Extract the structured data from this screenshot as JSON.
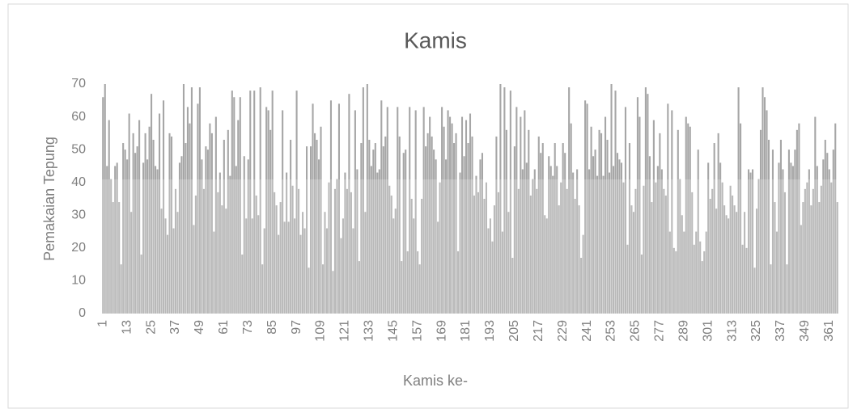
{
  "chart_data": {
    "type": "bar",
    "title": "Kamis",
    "x_label": "Kamis ke-",
    "y_label": "Pemakaian Tepung",
    "color": "#a6a6a6",
    "grid": false,
    "ylim": [
      0,
      70
    ],
    "yticks": [
      0,
      10,
      20,
      30,
      40,
      50,
      60,
      70
    ],
    "categories": [
      "1",
      null,
      null,
      null,
      null,
      null,
      null,
      null,
      null,
      null,
      null,
      null,
      "13",
      null,
      null,
      null,
      null,
      null,
      null,
      null,
      null,
      null,
      null,
      null,
      "25",
      null,
      null,
      null,
      null,
      null,
      null,
      null,
      null,
      null,
      null,
      null,
      "37",
      null,
      null,
      null,
      null,
      null,
      null,
      null,
      null,
      null,
      null,
      null,
      "49",
      null,
      null,
      null,
      null,
      null,
      null,
      null,
      null,
      null,
      null,
      null,
      "61",
      null,
      null,
      null,
      null,
      null,
      null,
      null,
      null,
      null,
      null,
      null,
      "73",
      null,
      null,
      null,
      null,
      null,
      null,
      null,
      null,
      null,
      null,
      null,
      "85",
      null,
      null,
      null,
      null,
      null,
      null,
      null,
      null,
      null,
      null,
      null,
      "97",
      null,
      null,
      null,
      null,
      null,
      null,
      null,
      null,
      null,
      null,
      null,
      "109",
      null,
      null,
      null,
      null,
      null,
      null,
      null,
      null,
      null,
      null,
      null,
      "121",
      null,
      null,
      null,
      null,
      null,
      null,
      null,
      null,
      null,
      null,
      null,
      "133",
      null,
      null,
      null,
      null,
      null,
      null,
      null,
      null,
      null,
      null,
      null,
      "145",
      null,
      null,
      null,
      null,
      null,
      null,
      null,
      null,
      null,
      null,
      null,
      "157",
      null,
      null,
      null,
      null,
      null,
      null,
      null,
      null,
      null,
      null,
      null,
      "169",
      null,
      null,
      null,
      null,
      null,
      null,
      null,
      null,
      null,
      null,
      null,
      "181",
      null,
      null,
      null,
      null,
      null,
      null,
      null,
      null,
      null,
      null,
      null,
      "193",
      null,
      null,
      null,
      null,
      null,
      null,
      null,
      null,
      null,
      null,
      null,
      "205",
      null,
      null,
      null,
      null,
      null,
      null,
      null,
      null,
      null,
      null,
      null,
      "217",
      null,
      null,
      null,
      null,
      null,
      null,
      null,
      null,
      null,
      null,
      null,
      "229",
      null,
      null,
      null,
      null,
      null,
      null,
      null,
      null,
      null,
      null,
      null,
      "241",
      null,
      null,
      null,
      null,
      null,
      null,
      null,
      null,
      null,
      null,
      null,
      "253",
      null,
      null,
      null,
      null,
      null,
      null,
      null,
      null,
      null,
      null,
      null,
      "265",
      null,
      null,
      null,
      null,
      null,
      null,
      null,
      null,
      null,
      null,
      null,
      "277",
      null,
      null,
      null,
      null,
      null,
      null,
      null,
      null,
      null,
      null,
      null,
      "289",
      null,
      null,
      null,
      null,
      null,
      null,
      null,
      null,
      null,
      null,
      null,
      "301",
      null,
      null,
      null,
      null,
      null,
      null,
      null,
      null,
      null,
      null,
      null,
      "313",
      null,
      null,
      null,
      null,
      null,
      null,
      null,
      null,
      null,
      null,
      null,
      "325",
      null,
      null,
      null,
      null,
      null,
      null,
      null,
      null,
      null,
      null,
      null,
      "337",
      null,
      null,
      null,
      null,
      null,
      null,
      null,
      null,
      null,
      null,
      null,
      "349",
      null,
      null,
      null,
      null,
      null,
      null,
      null,
      null,
      null,
      null,
      null,
      "361",
      null,
      null,
      null,
      null
    ],
    "values": [
      66,
      70,
      45,
      59,
      41,
      34,
      45,
      46,
      34,
      15,
      52,
      50,
      47,
      61,
      31,
      55,
      49,
      51,
      59,
      18,
      46,
      55,
      47,
      57,
      67,
      53,
      45,
      44,
      61,
      32,
      65,
      29,
      24,
      55,
      54,
      26,
      38,
      31,
      46,
      48,
      70,
      52,
      63,
      58,
      69,
      27,
      36,
      64,
      69,
      47,
      38,
      51,
      50,
      58,
      55,
      25,
      60,
      37,
      43,
      33,
      53,
      32,
      56,
      42,
      68,
      66,
      45,
      59,
      66,
      18,
      48,
      29,
      47,
      68,
      29,
      68,
      36,
      30,
      69,
      15,
      26,
      63,
      62,
      56,
      68,
      37,
      33,
      24,
      34,
      62,
      28,
      43,
      28,
      53,
      39,
      29,
      68,
      38,
      24,
      31,
      26,
      51,
      14,
      51,
      64,
      55,
      53,
      47,
      57,
      15,
      31,
      26,
      40,
      65,
      13,
      38,
      41,
      64,
      23,
      29,
      43,
      38,
      67,
      37,
      26,
      62,
      44,
      16,
      52,
      69,
      31,
      70,
      53,
      45,
      50,
      52,
      43,
      44,
      65,
      51,
      54,
      63,
      39,
      36,
      29,
      32,
      63,
      54,
      16,
      49,
      50,
      19,
      63,
      35,
      29,
      62,
      19,
      15,
      35,
      63,
      51,
      55,
      60,
      54,
      50,
      47,
      28,
      40,
      63,
      57,
      47,
      62,
      60,
      58,
      52,
      55,
      19,
      43,
      60,
      48,
      59,
      52,
      61,
      54,
      36,
      42,
      37,
      47,
      49,
      35,
      40,
      26,
      29,
      22,
      33,
      54,
      37,
      70,
      25,
      69,
      56,
      31,
      68,
      17,
      51,
      63,
      38,
      60,
      44,
      62,
      46,
      56,
      36,
      41,
      44,
      38,
      54,
      49,
      52,
      30,
      29,
      48,
      45,
      42,
      52,
      45,
      33,
      40,
      52,
      49,
      38,
      69,
      58,
      43,
      35,
      44,
      33,
      17,
      24,
      65,
      64,
      44,
      57,
      48,
      50,
      42,
      56,
      55,
      42,
      60,
      53,
      43,
      70,
      45,
      68,
      49,
      47,
      46,
      40,
      63,
      21,
      52,
      33,
      31,
      38,
      66,
      60,
      18,
      39,
      69,
      67,
      48,
      34,
      59,
      40,
      45,
      55,
      44,
      38,
      36,
      64,
      25,
      62,
      20,
      19,
      56,
      41,
      30,
      25,
      60,
      58,
      57,
      37,
      21,
      25,
      50,
      22,
      16,
      19,
      25,
      46,
      35,
      38,
      52,
      32,
      55,
      46,
      40,
      33,
      30,
      29,
      39,
      36,
      33,
      31,
      69,
      58,
      21,
      31,
      20,
      44,
      43,
      44,
      14,
      32,
      41,
      56,
      69,
      66,
      62,
      53,
      15,
      50,
      34,
      25,
      46,
      53,
      44,
      37,
      15,
      50,
      46,
      45,
      50,
      56,
      58,
      27,
      34,
      38,
      40,
      44,
      33,
      38,
      60,
      45,
      34,
      39,
      47,
      53,
      49,
      44,
      40,
      50,
      58,
      34
    ]
  }
}
